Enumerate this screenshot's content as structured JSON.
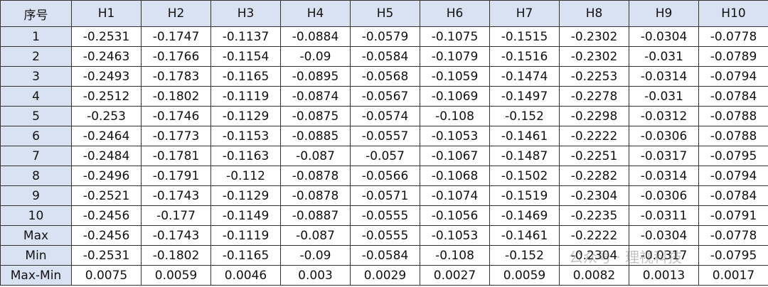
{
  "table": {
    "header": [
      "序号",
      "H1",
      "H2",
      "H3",
      "H4",
      "H5",
      "H6",
      "H7",
      "H8",
      "H9",
      "H10"
    ],
    "rows": [
      [
        "1",
        "-0.2531",
        "-0.1747",
        "-0.1137",
        "-0.0884",
        "-0.0579",
        "-0.1075",
        "-0.1515",
        "-0.2302",
        "-0.0304",
        "-0.0778"
      ],
      [
        "2",
        "-0.2463",
        "-0.1766",
        "-0.1154",
        "-0.09",
        "-0.0584",
        "-0.1079",
        "-0.1516",
        "-0.2302",
        "-0.031",
        "-0.0789"
      ],
      [
        "3",
        "-0.2493",
        "-0.1783",
        "-0.1165",
        "-0.0895",
        "-0.0568",
        "-0.1059",
        "-0.1474",
        "-0.2253",
        "-0.0314",
        "-0.0794"
      ],
      [
        "4",
        "-0.2512",
        "-0.1802",
        "-0.1119",
        "-0.0874",
        "-0.0567",
        "-0.1069",
        "-0.1497",
        "-0.2278",
        "-0.031",
        "-0.0784"
      ],
      [
        "5",
        "-0.253",
        "-0.1746",
        "-0.1129",
        "-0.0875",
        "-0.0574",
        "-0.108",
        "-0.152",
        "-0.2298",
        "-0.0312",
        "-0.0788"
      ],
      [
        "6",
        "-0.2464",
        "-0.1773",
        "-0.1153",
        "-0.0885",
        "-0.0557",
        "-0.1053",
        "-0.1461",
        "-0.2222",
        "-0.0306",
        "-0.0788"
      ],
      [
        "7",
        "-0.2484",
        "-0.1781",
        "-0.1163",
        "-0.087",
        "-0.057",
        "-0.1067",
        "-0.1487",
        "-0.2251",
        "-0.0317",
        "-0.0795"
      ],
      [
        "8",
        "-0.2496",
        "-0.1791",
        "-0.112",
        "-0.0878",
        "-0.0566",
        "-0.1068",
        "-0.1502",
        "-0.2282",
        "-0.0314",
        "-0.0794"
      ],
      [
        "9",
        "-0.2521",
        "-0.1743",
        "-0.1129",
        "-0.0878",
        "-0.0571",
        "-0.1074",
        "-0.1519",
        "-0.2304",
        "-0.0306",
        "-0.0784"
      ],
      [
        "10",
        "-0.2456",
        "-0.177",
        "-0.1149",
        "-0.0887",
        "-0.0555",
        "-0.1056",
        "-0.1469",
        "-0.2235",
        "-0.0311",
        "-0.0791"
      ],
      [
        "Max",
        "-0.2456",
        "-0.1743",
        "-0.1119",
        "-0.087",
        "-0.0555",
        "-0.1053",
        "-0.1461",
        "-0.2222",
        "-0.0304",
        "-0.0778"
      ],
      [
        "Min",
        "-0.2531",
        "-0.1802",
        "-0.1165",
        "-0.09",
        "-0.0584",
        "-0.108",
        "-0.152",
        "-0.2304",
        "-0.0317",
        "-0.0795"
      ],
      [
        "Max-Min",
        "0.0075",
        "0.0059",
        "0.0046",
        "0.003",
        "0.0029",
        "0.0027",
        "0.0059",
        "0.0082",
        "0.0013",
        "0.0017"
      ]
    ]
  },
  "watermark": "公众号 · 理视科技"
}
